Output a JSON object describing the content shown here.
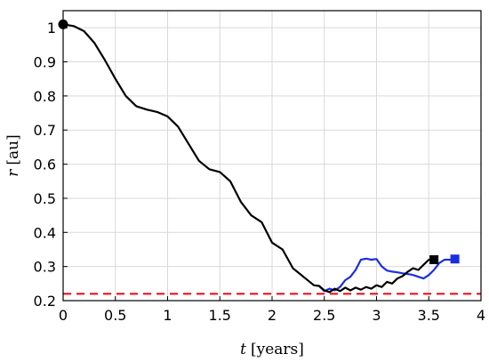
{
  "chart_data": {
    "type": "line",
    "xlabel_var": "t",
    "xlabel_unit": "[years]",
    "ylabel_var": "r",
    "ylabel_unit": "[au]",
    "xlim": [
      0,
      4
    ],
    "ylim": [
      0.2,
      1.05
    ],
    "xticks": [
      "0",
      "0.5",
      "1",
      "1.5",
      "2",
      "2.5",
      "3",
      "3.5",
      "4"
    ],
    "xtick_values": [
      0,
      0.5,
      1,
      1.5,
      2,
      2.5,
      3,
      3.5,
      4
    ],
    "yticks": [
      "0.2",
      "0.3",
      "0.4",
      "0.5",
      "0.6",
      "0.7",
      "0.8",
      "0.9",
      "1"
    ],
    "ytick_values": [
      0.2,
      0.3,
      0.4,
      0.5,
      0.6,
      0.7,
      0.8,
      0.9,
      1.0
    ],
    "grid": true,
    "reference_line": {
      "y": 0.22,
      "color": "#e8141c",
      "style": "dashed"
    },
    "series": [
      {
        "color": "#000000",
        "start_marker": "circle",
        "end_marker": "square",
        "x": [
          0,
          0.1,
          0.2,
          0.3,
          0.4,
          0.5,
          0.6,
          0.7,
          0.8,
          0.9,
          1.0,
          1.1,
          1.2,
          1.3,
          1.4,
          1.5,
          1.6,
          1.7,
          1.8,
          1.9,
          2.0,
          2.1,
          2.2,
          2.3,
          2.4,
          2.45,
          2.5,
          2.55,
          2.6,
          2.65,
          2.7,
          2.75,
          2.8,
          2.85,
          2.9,
          2.95,
          3.0,
          3.05,
          3.1,
          3.15,
          3.2,
          3.25,
          3.3,
          3.35,
          3.4,
          3.45,
          3.5,
          3.55
        ],
        "y": [
          1.01,
          1.005,
          0.99,
          0.955,
          0.905,
          0.85,
          0.8,
          0.77,
          0.76,
          0.753,
          0.74,
          0.71,
          0.66,
          0.61,
          0.585,
          0.577,
          0.55,
          0.49,
          0.45,
          0.43,
          0.37,
          0.35,
          0.295,
          0.27,
          0.245,
          0.243,
          0.23,
          0.225,
          0.235,
          0.228,
          0.238,
          0.23,
          0.238,
          0.232,
          0.24,
          0.235,
          0.245,
          0.24,
          0.255,
          0.25,
          0.265,
          0.272,
          0.285,
          0.295,
          0.29,
          0.305,
          0.32,
          0.32
        ]
      },
      {
        "color": "#1a2fe0",
        "end_marker": "square",
        "x": [
          2.45,
          2.5,
          2.55,
          2.6,
          2.65,
          2.7,
          2.75,
          2.8,
          2.85,
          2.9,
          2.95,
          3.0,
          3.05,
          3.1,
          3.15,
          3.2,
          3.25,
          3.3,
          3.35,
          3.4,
          3.45,
          3.5,
          3.55,
          3.6,
          3.65,
          3.7,
          3.75
        ],
        "y": [
          0.243,
          0.228,
          0.235,
          0.23,
          0.24,
          0.26,
          0.27,
          0.29,
          0.32,
          0.323,
          0.32,
          0.322,
          0.3,
          0.288,
          0.285,
          0.283,
          0.28,
          0.278,
          0.275,
          0.27,
          0.265,
          0.275,
          0.29,
          0.31,
          0.32,
          0.32,
          0.322
        ]
      }
    ]
  }
}
